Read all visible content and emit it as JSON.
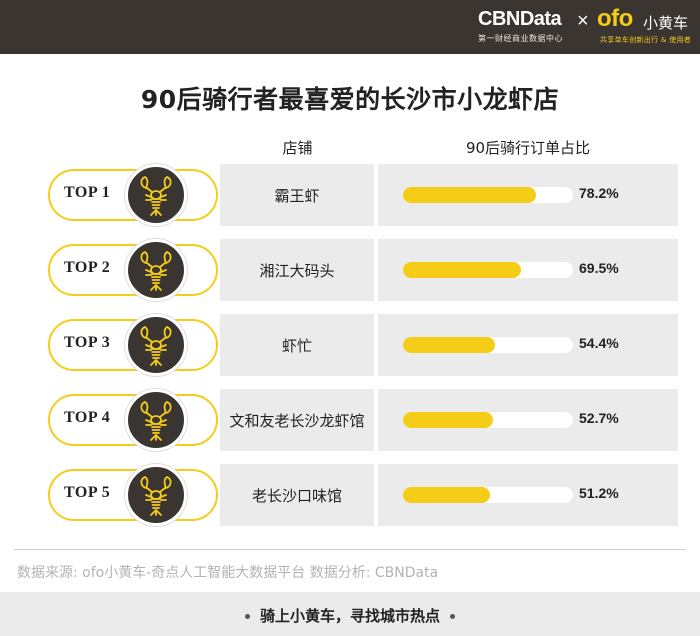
{
  "header": {
    "cbn_logo": "CBNData",
    "cbn_tagline": "第一财经商业数据中心",
    "separator": "×",
    "ofo_logo": "ofo",
    "ofo_name": "小黄车",
    "ofo_tagline": "共享单车创新出行 & 使用者"
  },
  "chart_data": {
    "type": "bar",
    "title": "90后骑行者最喜爱的长沙市小龙虾店",
    "category_header": "店铺",
    "value_header": "90后骑行订单占比",
    "categories": [
      "霸王虾",
      "湘江大码头",
      "虾忙",
      "文和友老长沙龙虾馆",
      "老长沙口味馆"
    ],
    "ranks": [
      "TOP 1",
      "TOP 2",
      "TOP 3",
      "TOP 4",
      "TOP 5"
    ],
    "values": [
      78.2,
      69.5,
      54.4,
      52.7,
      51.2
    ],
    "value_labels": [
      "78.2%",
      "69.5%",
      "54.4%",
      "52.7%",
      "51.2%"
    ],
    "ylim": [
      0,
      100
    ],
    "bar_color": "#f5cd19",
    "track_color": "#ffffff"
  },
  "source": "数据来源: ofo小黄车-奇点人工智能大数据平台     数据分析: CBNData",
  "footer": "骑上小黄车，寻找城市热点",
  "icons": {
    "badge": "lobster-icon"
  },
  "colors": {
    "dark": "#3a3531",
    "accent": "#f5cd19",
    "panel": "#ebebeb"
  }
}
